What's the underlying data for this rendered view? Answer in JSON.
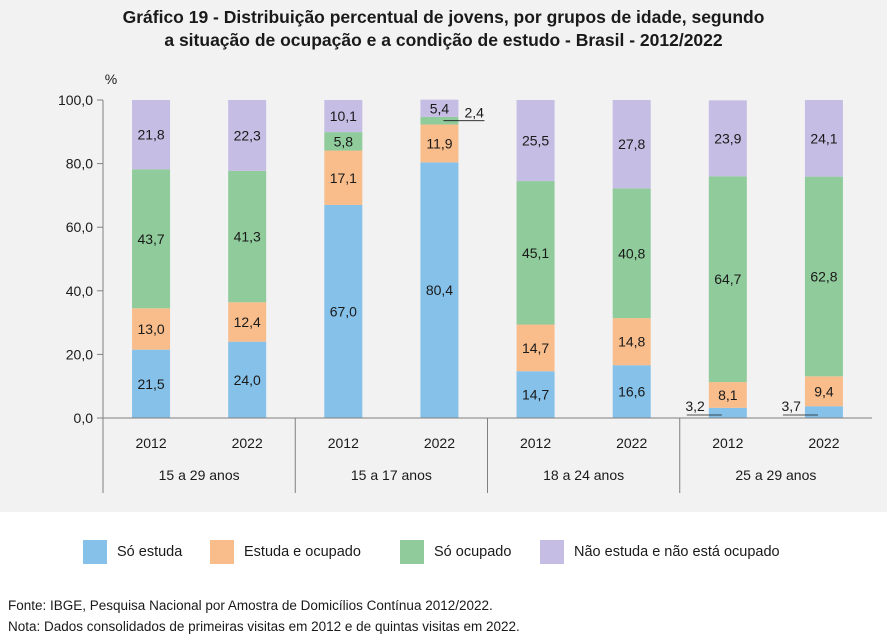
{
  "chart_data": {
    "type": "bar",
    "stacked": true,
    "title_lines": [
      "Gráfico 19 - Distribuição percentual de jovens, por grupos de idade, segundo",
      "a situação de ocupação e a condição de estudo - Brasil - 2012/2022"
    ],
    "ylabel": "%",
    "ylim": [
      0,
      100
    ],
    "yticks": [
      "0,0",
      "20,0",
      "40,0",
      "60,0",
      "80,0",
      "100,0"
    ],
    "ytick_values": [
      0,
      20,
      40,
      60,
      80,
      100
    ],
    "groups": [
      {
        "name": "15 a 29 anos",
        "years": [
          "2012",
          "2022"
        ]
      },
      {
        "name": "15 a 17 anos",
        "years": [
          "2012",
          "2022"
        ]
      },
      {
        "name": "18 a 24 anos",
        "years": [
          "2012",
          "2022"
        ]
      },
      {
        "name": "25 a 29 anos",
        "years": [
          "2012",
          "2022"
        ]
      }
    ],
    "series": [
      {
        "name": "Só estuda",
        "color": "#85c1e9",
        "values": [
          21.5,
          24.0,
          67.0,
          80.4,
          14.7,
          16.6,
          3.2,
          3.7
        ],
        "labels": [
          "21,5",
          "24,0",
          "67,0",
          "80,4",
          "14,7",
          "16,6",
          "3,2",
          "3,7"
        ]
      },
      {
        "name": "Estuda e ocupado",
        "color": "#f9bd8c",
        "values": [
          13.0,
          12.4,
          17.1,
          11.9,
          14.7,
          14.8,
          8.1,
          9.4
        ],
        "labels": [
          "13,0",
          "12,4",
          "17,1",
          "11,9",
          "14,7",
          "14,8",
          "8,1",
          "9,4"
        ]
      },
      {
        "name": "Só ocupado",
        "color": "#8fcb9b",
        "values": [
          43.7,
          41.3,
          5.8,
          2.4,
          45.1,
          40.8,
          64.7,
          62.8
        ],
        "labels": [
          "43,7",
          "41,3",
          "5,8",
          "2,4",
          "45,1",
          "40,8",
          "64,7",
          "62,8"
        ]
      },
      {
        "name": "Não estuda e não está ocupado",
        "color": "#c5bde3",
        "values": [
          21.8,
          22.3,
          10.1,
          5.4,
          25.5,
          27.8,
          23.9,
          24.1
        ],
        "labels": [
          "21,8",
          "22,3",
          "10,1",
          "5,4",
          "25,5",
          "27,8",
          "23,9",
          "24,1"
        ]
      }
    ],
    "legend_position": "bottom",
    "grid": false
  },
  "footer": {
    "source": "Fonte: IBGE, Pesquisa Nacional por Amostra de Domicílios Contínua 2012/2022.",
    "note": "Nota: Dados consolidados de primeiras visitas em 2012 e de quintas visitas em 2022."
  }
}
